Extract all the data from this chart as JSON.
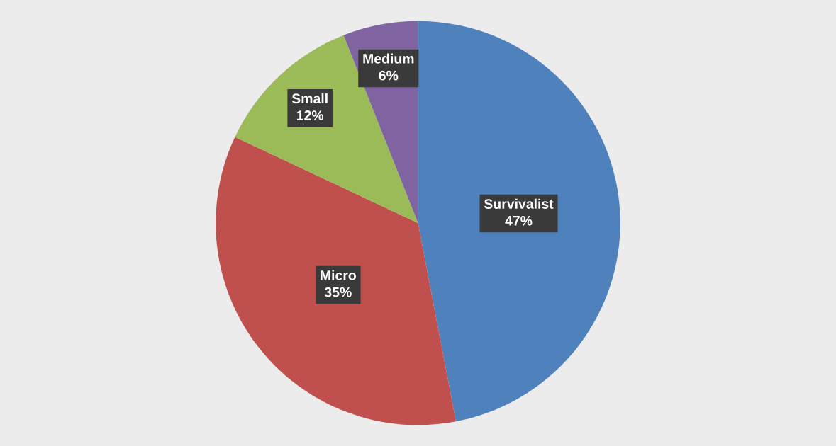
{
  "chart_data": {
    "type": "pie",
    "categories": [
      "Survivalist",
      "Micro",
      "Small",
      "Medium"
    ],
    "values": [
      47,
      35,
      12,
      6
    ],
    "value_labels": [
      "47%",
      "35%",
      "12%",
      "6%"
    ],
    "colors": [
      "#4f81bd",
      "#c0504d",
      "#9bbb59",
      "#8064a2"
    ]
  }
}
